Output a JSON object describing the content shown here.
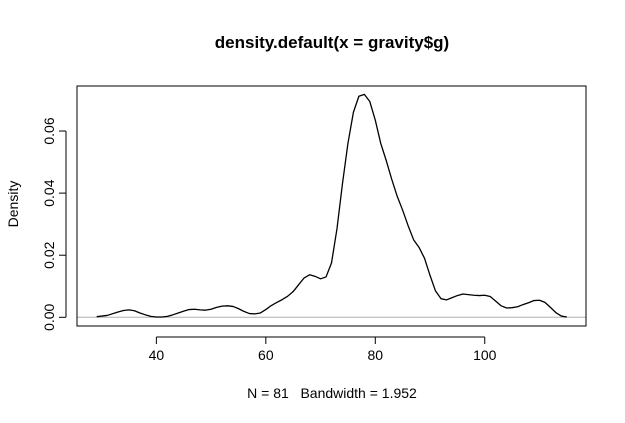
{
  "chart_data": {
    "type": "line",
    "title": "density.default(x = gravity$g)",
    "xlabel": "N = 81   Bandwidth = 1.952",
    "ylabel": "Density",
    "xlim": [
      25.5,
      118.5
    ],
    "ylim": [
      -0.0028,
      0.0745
    ],
    "x_ticks": [
      40,
      60,
      80,
      100
    ],
    "y_ticks": [
      0.0,
      0.02,
      0.04,
      0.06
    ],
    "x_tick_labels": [
      "40",
      "60",
      "80",
      "100"
    ],
    "y_tick_labels": [
      "0.00",
      "0.02",
      "0.04",
      "0.06"
    ],
    "grid": false,
    "baseline": 0,
    "baseline_color": "#b0b0b0",
    "line_color": "#000000",
    "series": [
      {
        "x": [
          29.1,
          31,
          33,
          34,
          35,
          36,
          37,
          38,
          39,
          40,
          41,
          42,
          43,
          44,
          45,
          46,
          47,
          48,
          49,
          50,
          51,
          52,
          53,
          54,
          55,
          56,
          57,
          58,
          59,
          60,
          61,
          62,
          63,
          64,
          65,
          66,
          67,
          68,
          69,
          70,
          71,
          72,
          73,
          74,
          75,
          76,
          77,
          78,
          79,
          80,
          81,
          82,
          83,
          84,
          85,
          86,
          87,
          88,
          89,
          90,
          91,
          92,
          93,
          94,
          95,
          96,
          97,
          98,
          99,
          100,
          101,
          102,
          103,
          104,
          105,
          106,
          107,
          108,
          109,
          110,
          111,
          112,
          113,
          114,
          115
        ],
        "y": [
          0.0002,
          0.0006,
          0.0017,
          0.0022,
          0.0024,
          0.0021,
          0.0014,
          0.0008,
          0.0003,
          0.0001,
          0.0001,
          0.0003,
          0.0008,
          0.0014,
          0.002,
          0.0025,
          0.0026,
          0.0024,
          0.0023,
          0.0026,
          0.0032,
          0.0036,
          0.0037,
          0.0035,
          0.0028,
          0.0019,
          0.0012,
          0.0011,
          0.0014,
          0.0025,
          0.0038,
          0.0048,
          0.0057,
          0.0068,
          0.0083,
          0.0105,
          0.0127,
          0.0137,
          0.0132,
          0.0124,
          0.013,
          0.0175,
          0.0285,
          0.043,
          0.056,
          0.066,
          0.0712,
          0.0718,
          0.0695,
          0.0635,
          0.056,
          0.0505,
          0.0445,
          0.039,
          0.0345,
          0.0295,
          0.025,
          0.0225,
          0.019,
          0.0135,
          0.0085,
          0.006,
          0.0056,
          0.0063,
          0.007,
          0.0075,
          0.0073,
          0.0071,
          0.007,
          0.0071,
          0.0067,
          0.0052,
          0.0037,
          0.003,
          0.0031,
          0.0034,
          0.0041,
          0.0047,
          0.0054,
          0.0055,
          0.0048,
          0.0032,
          0.0015,
          0.0004,
          0.0001
        ]
      }
    ]
  }
}
